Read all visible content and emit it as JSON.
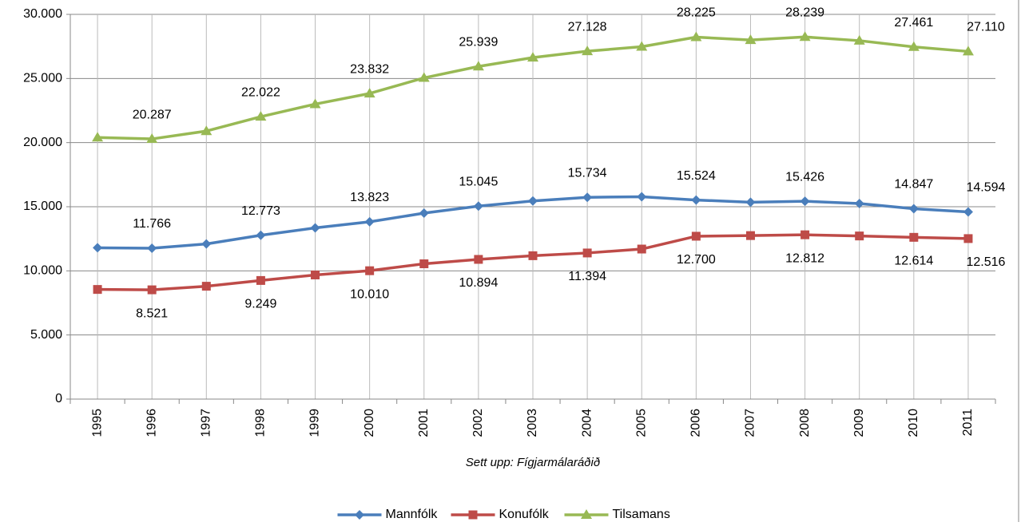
{
  "chart_data": {
    "type": "line",
    "caption": "Sett upp: Fígjarmálaráðið",
    "categories": [
      "1995",
      "1996",
      "1997",
      "1998",
      "1999",
      "2000",
      "2001",
      "2002",
      "2003",
      "2004",
      "2005",
      "2006",
      "2007",
      "2008",
      "2009",
      "2010",
      "2011"
    ],
    "ylim": [
      0,
      30000
    ],
    "yticks": [
      0,
      {
        "value": 5000,
        "label": "5.000"
      },
      {
        "value": 10000,
        "label": "10.000"
      },
      {
        "value": 15000,
        "label": "15.000"
      },
      {
        "value": 20000,
        "label": "20.000"
      },
      {
        "value": 25000,
        "label": "25.000"
      },
      {
        "value": 30000,
        "label": "30.000"
      }
    ],
    "grid": true,
    "legend": "bottom",
    "series": [
      {
        "name": "Mannfólk",
        "color": "#4a7ebb",
        "marker": "diamond",
        "label_position": "above",
        "values": [
          11800,
          11766,
          12100,
          12773,
          13350,
          13823,
          14500,
          15045,
          15450,
          15734,
          15780,
          15524,
          15350,
          15426,
          15250,
          14847,
          14594
        ],
        "value_labels": [
          null,
          "11.766",
          null,
          "12.773",
          null,
          "13.823",
          null,
          "15.045",
          null,
          "15.734",
          null,
          "15.524",
          null,
          "15.426",
          null,
          "14.847",
          "14.594"
        ]
      },
      {
        "name": "Konufólk",
        "color": "#be4b48",
        "marker": "square",
        "label_position": "below",
        "values": [
          8550,
          8521,
          8800,
          9249,
          9680,
          10010,
          10550,
          10894,
          11180,
          11394,
          11700,
          12700,
          12750,
          12812,
          12720,
          12614,
          12516
        ],
        "value_labels": [
          null,
          "8.521",
          null,
          "9.249",
          null,
          "10.010",
          null,
          "10.894",
          null,
          "11.394",
          null,
          "12.700",
          null,
          "12.812",
          null,
          "12.614",
          "12.516"
        ]
      },
      {
        "name": "Tilsamans",
        "color": "#98b954",
        "marker": "triangle",
        "label_position": "above",
        "values": [
          20400,
          20287,
          20900,
          22022,
          23000,
          23832,
          25050,
          25939,
          26630,
          27128,
          27480,
          28225,
          28000,
          28239,
          27950,
          27461,
          27110
        ],
        "value_labels": [
          null,
          "20.287",
          null,
          "22.022",
          null,
          "23.832",
          null,
          "25.939",
          null,
          "27.128",
          null,
          "28.225",
          null,
          "28.239",
          null,
          "27.461",
          "27.110"
        ]
      }
    ]
  }
}
